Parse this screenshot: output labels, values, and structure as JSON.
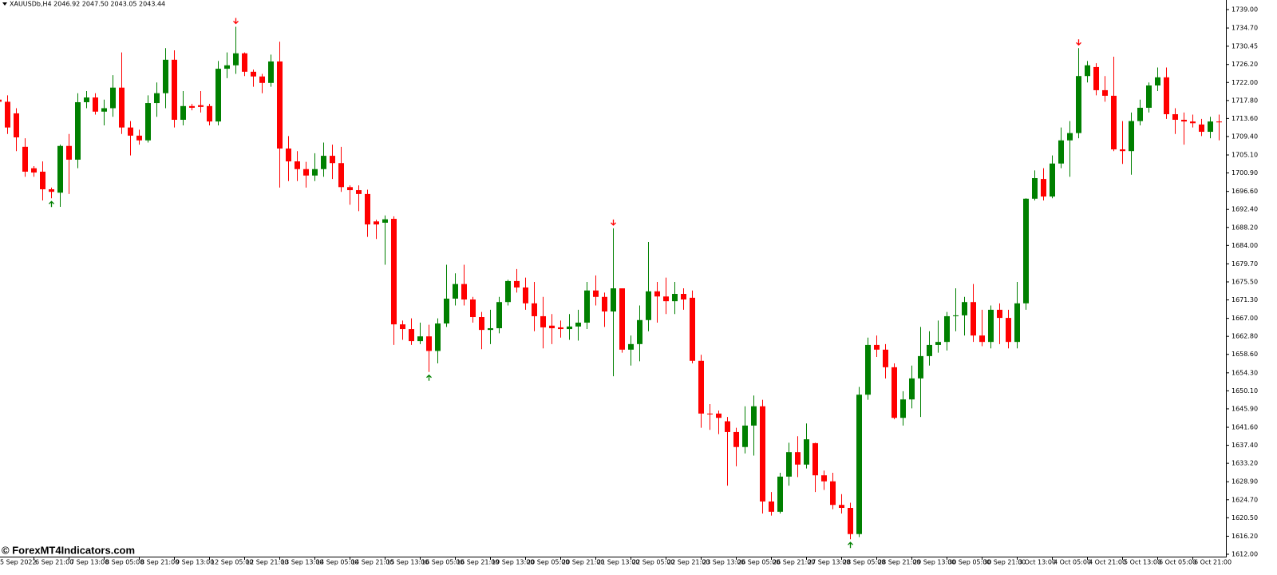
{
  "chart_data": {
    "type": "candlestick",
    "header": "XAUUSDb,H4  2046.92 2047.50 2043.05 2043.44",
    "watermark": "© ForexMT4Indicators.com",
    "up_color": "#008000",
    "down_color": "#ff0000",
    "grid": false,
    "ylim": [
      1611.44,
      1741.23
    ],
    "yticks": [
      {
        "value": 1739,
        "label": "1739.00"
      },
      {
        "value": 1734.7,
        "label": "1734.70"
      },
      {
        "value": 1730.45,
        "label": "1730.45"
      },
      {
        "value": 1726.2,
        "label": "1726.20"
      },
      {
        "value": 1722,
        "label": "1722.00"
      },
      {
        "value": 1717.8,
        "label": "1717.80"
      },
      {
        "value": 1713.6,
        "label": "1713.60"
      },
      {
        "value": 1709.4,
        "label": "1709.40"
      },
      {
        "value": 1705.1,
        "label": "1705.10"
      },
      {
        "value": 1700.9,
        "label": "1700.90"
      },
      {
        "value": 1696.6,
        "label": "1696.60"
      },
      {
        "value": 1692.4,
        "label": "1692.40"
      },
      {
        "value": 1688.2,
        "label": "1688.20"
      },
      {
        "value": 1684,
        "label": "1684.00"
      },
      {
        "value": 1679.7,
        "label": "1679.70"
      },
      {
        "value": 1675.5,
        "label": "1675.50"
      },
      {
        "value": 1671.3,
        "label": "1671.30"
      },
      {
        "value": 1667,
        "label": "1667.00"
      },
      {
        "value": 1662.8,
        "label": "1662.80"
      },
      {
        "value": 1658.6,
        "label": "1658.60"
      },
      {
        "value": 1654.3,
        "label": "1654.30"
      },
      {
        "value": 1650.1,
        "label": "1650.10"
      },
      {
        "value": 1645.9,
        "label": "1645.90"
      },
      {
        "value": 1641.6,
        "label": "1641.60"
      },
      {
        "value": 1637.4,
        "label": "1637.40"
      },
      {
        "value": 1633.2,
        "label": "1633.20"
      },
      {
        "value": 1628.9,
        "label": "1628.90"
      },
      {
        "value": 1624.7,
        "label": "1624.70"
      },
      {
        "value": 1620.5,
        "label": "1620.50"
      },
      {
        "value": 1616.2,
        "label": "1616.20"
      },
      {
        "value": 1612,
        "label": "1612.00"
      }
    ],
    "categories": [
      "5 Sep 2022",
      null,
      null,
      null,
      "6 Sep 21:00",
      null,
      null,
      null,
      "7 Sep 13:00",
      null,
      null,
      null,
      "8 Sep 05:00",
      null,
      null,
      null,
      "8 Sep 21:00",
      null,
      null,
      null,
      "9 Sep 13:00",
      null,
      null,
      null,
      "12 Sep 05:00",
      null,
      null,
      null,
      "12 Sep 21:00",
      null,
      null,
      null,
      "13 Sep 13:00",
      null,
      null,
      null,
      "14 Sep 05:00",
      null,
      null,
      null,
      "14 Sep 21:00",
      null,
      null,
      null,
      "15 Sep 13:00",
      null,
      null,
      null,
      "16 Sep 05:00",
      null,
      null,
      null,
      "16 Sep 21:00",
      null,
      null,
      null,
      "19 Sep 13:00",
      null,
      null,
      null,
      "20 Sep 05:00",
      null,
      null,
      null,
      "20 Sep 21:00",
      null,
      null,
      null,
      "21 Sep 13:00",
      null,
      null,
      null,
      "22 Sep 05:00",
      null,
      null,
      null,
      "22 Sep 21:00",
      null,
      null,
      null,
      "23 Sep 13:00",
      null,
      null,
      null,
      "26 Sep 05:00",
      null,
      null,
      null,
      "26 Sep 21:00",
      null,
      null,
      null,
      "27 Sep 13:00",
      null,
      null,
      null,
      "28 Sep 05:00",
      null,
      null,
      null,
      "28 Sep 21:00",
      null,
      null,
      null,
      "29 Sep 13:00",
      null,
      null,
      null,
      "30 Sep 05:00",
      null,
      null,
      null,
      "30 Sep 21:00",
      null,
      null,
      null,
      "3 Oct 13:00",
      null,
      null,
      null,
      "4 Oct 05:00",
      null,
      null,
      null,
      "4 Oct 21:00",
      null,
      null,
      null,
      "5 Oct 13:00",
      null,
      null,
      null,
      "6 Oct 05:00",
      null,
      null,
      null,
      "6 Oct 21:00",
      null,
      null,
      null
    ],
    "open": [
      1718,
      1717.5,
      1714.8,
      1707,
      1702,
      1701.2,
      1697.1,
      1696.3,
      1707.2,
      1704,
      1717.4,
      1718.5,
      1715.2,
      1716,
      1720.8,
      1711.5,
      1709.6,
      1708.5,
      1717.2,
      1719.5,
      1727.3,
      1713.3,
      1716.5,
      1716.7,
      1716.5,
      1712.9,
      1725.2,
      1726,
      1728.8,
      1724.5,
      1723.4,
      1721.9,
      1726.9,
      1706.6,
      1703.6,
      1701.8,
      1700.3,
      1701.8,
      1704.9,
      1703.2,
      1697.6,
      1696.9,
      1696,
      1689.6,
      1689.3,
      1690.2,
      1665.6,
      1664.5,
      1661.7,
      1662.8,
      1659.4,
      1665.8,
      1671.6,
      1675,
      1671.4,
      1667.3,
      1664.3,
      1664.7,
      1670.8,
      1675.7,
      1674.2,
      1670.5,
      1667.5,
      1665.3,
      1664.9,
      1664.5,
      1665.1,
      1666,
      1673.5,
      1672,
      1668.6,
      1674,
      1659.7,
      1661,
      1666.6,
      1673.3,
      1672.1,
      1671,
      1672.7,
      1671.8,
      1657.1,
      1644.8,
      1644.8,
      1643,
      1640.5,
      1637,
      1642,
      1646.5,
      1624.3,
      1621.9,
      1630.1,
      1635.8,
      1632.9,
      1637.9,
      1630.4,
      1629,
      1623.5,
      1622.8,
      1616.7,
      1649.2,
      1660.8,
      1659.7,
      1655.6,
      1643.8,
      1648.1,
      1653,
      1658.2,
      1660.8,
      1661.5,
      1667.5,
      1667.7,
      1670.8,
      1663,
      1661.5,
      1669,
      1667.1,
      1661.5,
      1670.5,
      1694.9,
      1699.5,
      1695.4,
      1703.1,
      1708.5,
      1710.2,
      1723.5,
      1725.6,
      1720.2,
      1718.9,
      1706.4,
      1706,
      1713,
      1716.1,
      1721.3,
      1723.2,
      1714.6,
      1713.3,
      1712.9,
      1712.2,
      1710.5,
      1712.9
    ],
    "high": [
      1720,
      1719,
      1716,
      1709,
      1702.5,
      1703.6,
      1697.5,
      1707.5,
      1710,
      1719.5,
      1720,
      1719.5,
      1718,
      1723.7,
      1729,
      1713,
      1711,
      1719,
      1722,
      1730,
      1729.5,
      1720,
      1717,
      1720,
      1717,
      1727,
      1729,
      1735,
      1729,
      1725,
      1724,
      1728.5,
      1731.5,
      1709.5,
      1706,
      1703.5,
      1705.5,
      1708,
      1707.5,
      1707,
      1698,
      1698,
      1697,
      1690,
      1691,
      1690.8,
      1666.5,
      1667,
      1666,
      1665.5,
      1667,
      1679.5,
      1677.5,
      1679.5,
      1672,
      1668.5,
      1669,
      1672,
      1676,
      1678.5,
      1676.5,
      1675.5,
      1672,
      1668,
      1666.5,
      1668,
      1669,
      1675.5,
      1677,
      1673,
      1688,
      1674,
      1663,
      1670,
      1684.8,
      1675.5,
      1676.5,
      1675.5,
      1674,
      1673.5,
      1658.5,
      1647,
      1645.5,
      1644,
      1641.5,
      1646.5,
      1649,
      1648,
      1626.5,
      1631,
      1638,
      1639.5,
      1642.5,
      1638,
      1631.5,
      1631,
      1626,
      1624,
      1651,
      1662.5,
      1663,
      1661,
      1656.5,
      1650,
      1656,
      1665,
      1664,
      1666.5,
      1668.5,
      1674,
      1672,
      1675,
      1669,
      1670,
      1670.5,
      1669,
      1675.5,
      1695,
      1701.5,
      1702,
      1705,
      1711.5,
      1713,
      1730,
      1727,
      1726.5,
      1723.5,
      1728,
      1713,
      1715,
      1718,
      1722,
      1725.5,
      1725.5,
      1716,
      1715,
      1714.5,
      1713.5,
      1714,
      1714.5
    ],
    "low": [
      1716,
      1710,
      1706,
      1700,
      1700,
      1694.5,
      1695,
      1693,
      1696,
      1702,
      1716,
      1714.5,
      1712,
      1714,
      1710,
      1705,
      1707.5,
      1708,
      1714,
      1716,
      1711.5,
      1712,
      1715.5,
      1715,
      1712,
      1712,
      1723,
      1724,
      1723.5,
      1721,
      1719.5,
      1721,
      1697.5,
      1699,
      1699,
      1697.5,
      1699,
      1700,
      1699.5,
      1696.5,
      1693.5,
      1692,
      1686,
      1685.5,
      1679.5,
      1660.8,
      1662,
      1660.8,
      1661,
      1654.5,
      1656.5,
      1665,
      1670,
      1670,
      1666,
      1659.8,
      1661,
      1663.5,
      1670,
      1673,
      1669,
      1664,
      1660,
      1661,
      1662.5,
      1662,
      1661.8,
      1664.5,
      1670,
      1665,
      1653.5,
      1659,
      1656,
      1657,
      1664,
      1666,
      1668,
      1668,
      1669,
      1656.5,
      1641.5,
      1641,
      1640,
      1628,
      1632.5,
      1635.5,
      1635,
      1621.5,
      1621,
      1621.5,
      1628,
      1630,
      1632,
      1626.5,
      1627,
      1622.5,
      1621.5,
      1615.5,
      1616,
      1648,
      1658,
      1653,
      1643.5,
      1642,
      1646,
      1644,
      1656,
      1659,
      1659.5,
      1664,
      1663,
      1661.5,
      1660.5,
      1660,
      1661,
      1660,
      1660,
      1669,
      1694.5,
      1694.5,
      1695,
      1702,
      1700,
      1709,
      1722,
      1719,
      1717.5,
      1706,
      1703,
      1700.5,
      1712,
      1715,
      1720,
      1713.5,
      1710,
      1707.5,
      1711.5,
      1709.5,
      1709,
      1708.5
    ],
    "close": [
      1717.5,
      1711.5,
      1709.2,
      1701.2,
      1701,
      1697.1,
      1696.5,
      1707.2,
      1704,
      1717.4,
      1718.5,
      1715.2,
      1716,
      1720.8,
      1711.5,
      1709.6,
      1708.5,
      1717.2,
      1719.5,
      1727.3,
      1713.3,
      1716.5,
      1716.1,
      1716.3,
      1712.9,
      1725.2,
      1726,
      1728.8,
      1724.5,
      1723.4,
      1721.9,
      1726.9,
      1706.6,
      1703.6,
      1701.8,
      1700.3,
      1701.8,
      1704.9,
      1703.2,
      1697.6,
      1696.9,
      1696,
      1688.9,
      1688.9,
      1690.1,
      1665.6,
      1664.5,
      1661.7,
      1662.8,
      1659.4,
      1665.8,
      1671.6,
      1675,
      1671.4,
      1667.3,
      1664.3,
      1664.7,
      1670.8,
      1675.7,
      1674.2,
      1670.5,
      1667.5,
      1664.9,
      1664.7,
      1664.5,
      1665.1,
      1666,
      1673.5,
      1672,
      1668.6,
      1674,
      1659.7,
      1661,
      1666.6,
      1673.3,
      1672.1,
      1671,
      1672.7,
      1671.4,
      1657.1,
      1644.8,
      1644.6,
      1643.8,
      1640.5,
      1637,
      1642,
      1646.5,
      1624.3,
      1621.9,
      1630.1,
      1635.8,
      1632.9,
      1638.8,
      1630.4,
      1629,
      1623.5,
      1622.8,
      1616.7,
      1649.2,
      1660.8,
      1659.7,
      1655.6,
      1643.8,
      1648.1,
      1653,
      1658.2,
      1660.8,
      1661.5,
      1667.5,
      1667.7,
      1670.8,
      1663,
      1661.5,
      1669,
      1667.1,
      1661.5,
      1670.5,
      1694.9,
      1699.7,
      1695.4,
      1703.1,
      1708.5,
      1710.2,
      1723.5,
      1726,
      1720.2,
      1718.9,
      1706.4,
      1706,
      1713,
      1716.1,
      1721.3,
      1723.2,
      1714.6,
      1713.3,
      1712.9,
      1712.5,
      1710.5,
      1712.9,
      1712.7
    ],
    "signals": [
      {
        "index": 6,
        "direction": "up"
      },
      {
        "index": 27,
        "direction": "down"
      },
      {
        "index": 49,
        "direction": "up"
      },
      {
        "index": 70,
        "direction": "down"
      },
      {
        "index": 97,
        "direction": "up"
      },
      {
        "index": 123,
        "direction": "down"
      }
    ]
  }
}
